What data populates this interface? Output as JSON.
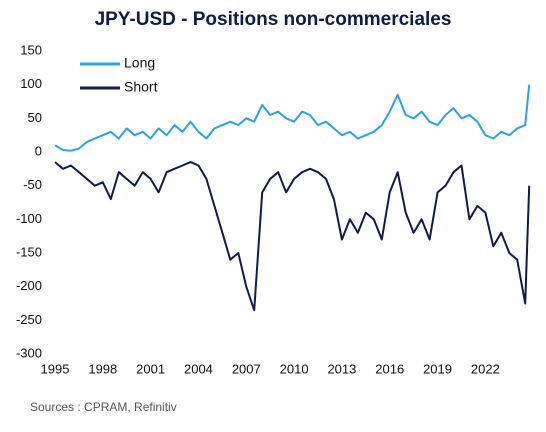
{
  "chart_data": {
    "type": "line",
    "title": "JPY-USD - Positions non-commerciales",
    "source": "Sources : CPRAM, Refinitiv",
    "x": [
      1995.0,
      1995.5,
      1996.0,
      1996.5,
      1997.0,
      1997.5,
      1998.0,
      1998.5,
      1999.0,
      1999.5,
      2000.0,
      2000.5,
      2001.0,
      2001.5,
      2002.0,
      2002.5,
      2003.0,
      2003.5,
      2004.0,
      2004.5,
      2005.0,
      2005.5,
      2006.0,
      2006.5,
      2007.0,
      2007.5,
      2008.0,
      2008.5,
      2009.0,
      2009.5,
      2010.0,
      2010.5,
      2011.0,
      2011.5,
      2012.0,
      2012.5,
      2013.0,
      2013.5,
      2014.0,
      2014.5,
      2015.0,
      2015.5,
      2016.0,
      2016.5,
      2017.0,
      2017.5,
      2018.0,
      2018.5,
      2019.0,
      2019.5,
      2020.0,
      2020.5,
      2021.0,
      2021.5,
      2022.0,
      2022.5,
      2023.0,
      2023.5,
      2024.0,
      2024.5,
      2024.75
    ],
    "series": [
      {
        "name": "Long",
        "color": "#2ba3df",
        "values": [
          10,
          3,
          2,
          5,
          15,
          20,
          25,
          30,
          20,
          35,
          25,
          30,
          20,
          35,
          25,
          40,
          30,
          45,
          30,
          20,
          35,
          40,
          45,
          40,
          50,
          45,
          70,
          55,
          60,
          50,
          45,
          60,
          55,
          40,
          45,
          35,
          25,
          30,
          20,
          25,
          30,
          40,
          60,
          85,
          55,
          50,
          60,
          45,
          40,
          55,
          65,
          50,
          55,
          45,
          25,
          20,
          30,
          25,
          35,
          40,
          100
        ]
      },
      {
        "name": "Short",
        "color": "#0e1c47",
        "values": [
          -15,
          -25,
          -20,
          -30,
          -40,
          -50,
          -45,
          -70,
          -30,
          -40,
          -50,
          -30,
          -40,
          -60,
          -30,
          -25,
          -20,
          -15,
          -20,
          -40,
          -80,
          -120,
          -160,
          -150,
          -200,
          -235,
          -60,
          -40,
          -30,
          -60,
          -40,
          -30,
          -25,
          -30,
          -40,
          -70,
          -130,
          -100,
          -120,
          -90,
          -100,
          -130,
          -60,
          -30,
          -90,
          -120,
          -100,
          -130,
          -60,
          -50,
          -30,
          -20,
          -100,
          -80,
          -90,
          -140,
          -120,
          -150,
          -160,
          -225,
          -50
        ]
      }
    ],
    "xlim": [
      1995,
      2024.8
    ],
    "xticks": [
      1995,
      1998,
      2001,
      2004,
      2007,
      2010,
      2013,
      2016,
      2019,
      2022
    ],
    "ylim": [
      -300,
      150
    ],
    "yticks": [
      -300,
      -250,
      -200,
      -150,
      -100,
      -50,
      0,
      50,
      100,
      150
    ],
    "legend": "upper-left"
  }
}
